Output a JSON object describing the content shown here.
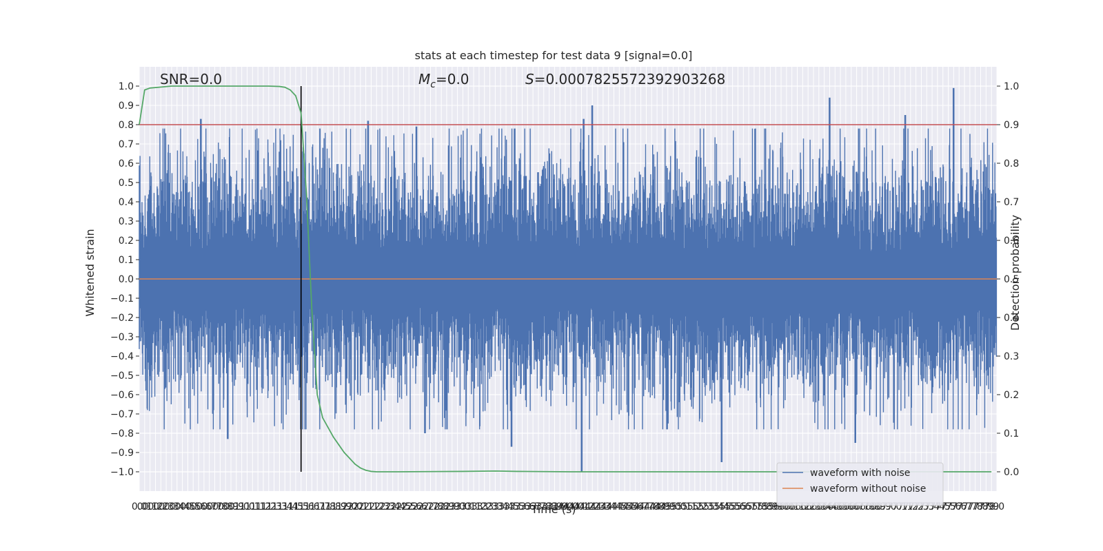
{
  "chart_data": {
    "type": "line",
    "title": "stats at each timestep for test data 9 [signal=0.0]",
    "xlabel": "Time (s)",
    "ylabel_left": "Whitened strain",
    "ylabel_right": "Detection probability",
    "xlim": [
      0.0,
      7.95
    ],
    "ylim_left": [
      -1.1,
      1.1
    ],
    "ylim_right": [
      -0.05,
      1.05
    ],
    "x_tick_step": 0.05,
    "left_ticks": [
      1.0,
      0.9,
      0.8,
      0.7,
      0.6,
      0.5,
      0.4,
      0.3,
      0.2,
      0.1,
      0.0,
      -0.1,
      -0.2,
      -0.3,
      -0.4,
      -0.5,
      -0.6,
      -0.7,
      -0.8,
      -0.9,
      -1.0
    ],
    "left_tick_labels": [
      "1.0",
      "0.9",
      "0.8",
      "0.7",
      "0.6",
      "0.5",
      "0.4",
      "0.3",
      "0.2",
      "0.1",
      "0.0",
      "−0.1",
      "−0.2",
      "−0.3",
      "−0.4",
      "−0.5",
      "−0.6",
      "−0.7",
      "−0.8",
      "−0.9",
      "−1.0"
    ],
    "right_ticks": [
      1.0,
      0.9,
      0.8,
      0.7,
      0.6,
      0.5,
      0.4,
      0.3,
      0.2,
      0.1,
      0.0
    ],
    "right_tick_labels": [
      "1.0",
      "0.9",
      "0.8",
      "0.7",
      "0.6",
      "0.5",
      "0.4",
      "0.3",
      "0.2",
      "0.1",
      "0.0"
    ],
    "grid": true,
    "legend_position": "lower-right",
    "annotations": {
      "snr": "SNR=0.0",
      "mc_symbol": "M",
      "mc_subscript": "c",
      "mc_value": "=0.0",
      "s_symbol": "S",
      "s_value": "=0.0007825572392903268"
    },
    "threshold_line": {
      "axis": "right",
      "value": 0.9,
      "color": "#c44e52"
    },
    "vertical_marker": {
      "x": 1.5,
      "color": "#000000"
    },
    "series": [
      {
        "name": "waveform with noise",
        "axis": "left",
        "color": "#4c72b0",
        "envelope_peaks": [
          {
            "x": 0.57,
            "y": 0.83
          },
          {
            "x": 0.82,
            "y": -0.83
          },
          {
            "x": 2.12,
            "y": 0.82
          },
          {
            "x": 2.57,
            "y": 0.79
          },
          {
            "x": 2.65,
            "y": -0.8
          },
          {
            "x": 3.45,
            "y": -0.87
          },
          {
            "x": 4.12,
            "y": 0.83
          },
          {
            "x": 4.2,
            "y": 0.9
          },
          {
            "x": 4.1,
            "y": -1.0
          },
          {
            "x": 5.4,
            "y": -0.95
          },
          {
            "x": 6.4,
            "y": 0.94
          },
          {
            "x": 6.64,
            "y": -0.85
          },
          {
            "x": 7.1,
            "y": 0.85
          },
          {
            "x": 7.55,
            "y": 0.99
          }
        ],
        "typical_amplitude": 0.5
      },
      {
        "name": "waveform without noise",
        "axis": "left",
        "color": "#dd8452",
        "x": [
          0.0,
          7.95
        ],
        "y": [
          0.0,
          0.0
        ]
      },
      {
        "axis": "right",
        "color": "#55a868",
        "x": [
          0.0,
          0.05,
          0.1,
          0.3,
          0.6,
          1.0,
          1.2,
          1.3,
          1.35,
          1.4,
          1.45,
          1.5,
          1.55,
          1.6,
          1.65,
          1.7,
          1.75,
          1.8,
          1.85,
          1.9,
          1.95,
          2.0,
          2.05,
          2.1,
          2.15,
          2.2,
          2.4,
          3.0,
          3.3,
          3.5,
          4.0,
          5.0,
          6.0,
          7.0,
          7.9
        ],
        "y": [
          0.9,
          0.99,
          0.995,
          1.0,
          1.0,
          1.0,
          1.0,
          0.999,
          0.997,
          0.99,
          0.975,
          0.93,
          0.72,
          0.42,
          0.2,
          0.14,
          0.115,
          0.09,
          0.07,
          0.05,
          0.035,
          0.02,
          0.01,
          0.004,
          0.001,
          0.0,
          0.0,
          0.001,
          0.002,
          0.001,
          0.0,
          0.0,
          0.0,
          0.0,
          0.0
        ]
      }
    ]
  },
  "legend": {
    "items": [
      {
        "label": "waveform with noise",
        "color": "#4c72b0"
      },
      {
        "label": "waveform without noise",
        "color": "#dd8452"
      }
    ]
  },
  "colors": {
    "axes_bg": "#eaeaf2",
    "grid": "#ffffff",
    "noise": "#4c72b0",
    "clean": "#dd8452",
    "probability": "#55a868",
    "threshold": "#c44e52"
  }
}
